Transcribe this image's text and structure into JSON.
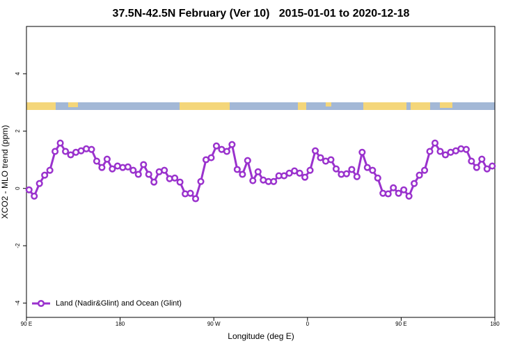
{
  "chart_data": {
    "type": "line",
    "title": "37.5N-42.5N February (Ver 10)   2015-01-01 to 2020-12-18",
    "x_label": "Longitude (deg E)",
    "y_label": "XCO2 - MLO trend (ppm)",
    "xlim": [
      90,
      540
    ],
    "ylim": [
      -4.5,
      5.65
    ],
    "xticks": [
      {
        "value": 90,
        "label": "90 E"
      },
      180,
      {
        "value": 270,
        "label": "90 W"
      },
      {
        "value": 360,
        "label": "0"
      },
      {
        "value": 450,
        "label": "90 E"
      },
      {
        "value": 540,
        "label": "180"
      }
    ],
    "yticks": [
      -4,
      -2,
      0,
      2,
      4
    ],
    "legend": "bottom-left",
    "x": [
      92.5,
      97.5,
      102.5,
      107.5,
      112.5,
      117.5,
      122.5,
      127.5,
      132.5,
      137.5,
      142.5,
      147.5,
      152.5,
      157.5,
      162.5,
      167.5,
      172.5,
      177.5,
      182.5,
      187.5,
      192.5,
      197.5,
      202.5,
      207.5,
      212.5,
      217.5,
      222.5,
      227.5,
      232.5,
      237.5,
      242.5,
      247.5,
      252.5,
      257.5,
      262.5,
      267.5,
      272.5,
      277.5,
      282.5,
      287.5,
      292.5,
      297.5,
      302.5,
      307.5,
      312.5,
      317.5,
      322.5,
      327.5,
      332.5,
      337.5,
      342.5,
      347.5,
      352.5,
      357.5,
      362.5,
      367.5,
      372.5,
      377.5,
      382.5,
      387.5,
      392.5,
      397.5,
      402.5,
      407.5,
      412.5,
      417.5,
      422.5,
      427.5,
      432.5,
      437.5,
      442.5,
      447.5,
      452.5,
      457.5,
      462.5,
      467.5,
      472.5,
      477.5,
      482.5,
      487.5,
      492.5,
      497.5,
      502.5,
      507.5,
      512.5,
      517.5,
      522.5,
      527.5,
      532.5,
      537.5
    ],
    "series": [
      {
        "name": "Land (Nadir&Glint) and Ocean (Glint)",
        "color": "#9a32cd",
        "values": [
          -0.05,
          -0.27,
          0.17,
          0.46,
          0.63,
          1.29,
          1.58,
          1.29,
          1.17,
          1.26,
          1.31,
          1.38,
          1.36,
          0.95,
          0.73,
          1.02,
          0.68,
          0.78,
          0.73,
          0.75,
          0.63,
          0.49,
          0.83,
          0.49,
          0.22,
          0.58,
          0.63,
          0.34,
          0.36,
          0.22,
          -0.19,
          -0.17,
          -0.36,
          0.24,
          1.0,
          1.07,
          1.48,
          1.36,
          1.29,
          1.53,
          0.66,
          0.49,
          0.97,
          0.27,
          0.58,
          0.29,
          0.24,
          0.24,
          0.44,
          0.44,
          0.53,
          0.61,
          0.53,
          0.39,
          0.63,
          1.31,
          1.07,
          0.95,
          1.0,
          0.68,
          0.49,
          0.51,
          0.66,
          0.41,
          1.26,
          0.73,
          0.63,
          0.36,
          -0.17,
          -0.19,
          0.02,
          -0.17,
          -0.05,
          -0.27,
          0.17,
          0.46,
          0.63,
          1.29,
          1.58,
          1.29,
          1.17,
          1.26,
          1.31,
          1.38,
          1.36,
          0.95,
          0.73,
          1.02,
          0.68,
          0.78
        ]
      }
    ]
  }
}
